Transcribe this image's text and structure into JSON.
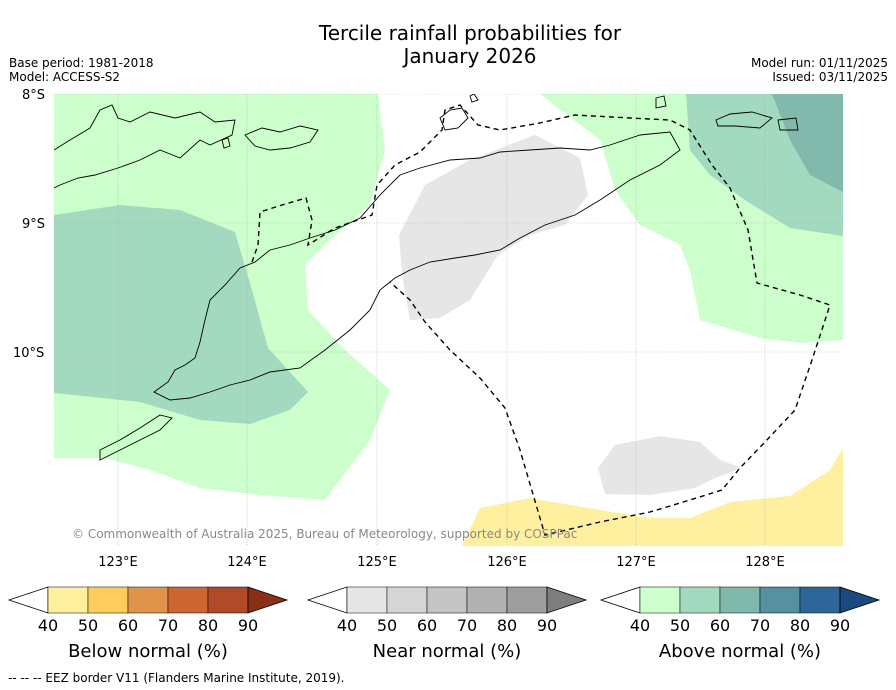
{
  "title_line1": "Tercile rainfall probabilities for",
  "title_line2": "January 2026",
  "base_period": "Base period: 1981-2018",
  "model": "Model: ACCESS-S2",
  "model_run": "Model run: 01/11/2025",
  "issued": "Issued: 03/11/2025",
  "attribution": "© Commonwealth of Australia 2025, Bureau of Meteorology, supported by COSPPac",
  "footer": "--  --  -- EEZ border V11 (Flanders Marine Institute, 2019).",
  "map": {
    "lat_labels": [
      "8°S",
      "9°S",
      "10°S"
    ],
    "lon_labels": [
      "123°E",
      "124°E",
      "125°E",
      "126°E",
      "127°E",
      "128°E"
    ],
    "extent": {
      "lon_min": 122.5,
      "lon_max": 128.6,
      "lat_max": -8.0,
      "lat_min": -11.5
    }
  },
  "legends": [
    {
      "title": "Below normal (%)",
      "ticks": [
        "40",
        "50",
        "60",
        "70",
        "80",
        "90"
      ],
      "colors": [
        "#ffffff",
        "#fff0a0",
        "#fecc5c",
        "#e0934a",
        "#cc6633",
        "#b04a28",
        "#8a2e18"
      ]
    },
    {
      "title": "Near normal (%)",
      "ticks": [
        "40",
        "50",
        "60",
        "70",
        "80",
        "90"
      ],
      "colors": [
        "#ffffff",
        "#e6e6e6",
        "#d6d6d6",
        "#c4c4c4",
        "#b1b1b1",
        "#9e9e9e",
        "#7e7e7e"
      ]
    },
    {
      "title": "Above normal (%)",
      "ticks": [
        "40",
        "50",
        "60",
        "70",
        "80",
        "90"
      ],
      "colors": [
        "#ffffff",
        "#ccffcc",
        "#a3d9bf",
        "#80b8ab",
        "#5790a0",
        "#2f6699",
        "#1a4a80"
      ]
    }
  ]
}
